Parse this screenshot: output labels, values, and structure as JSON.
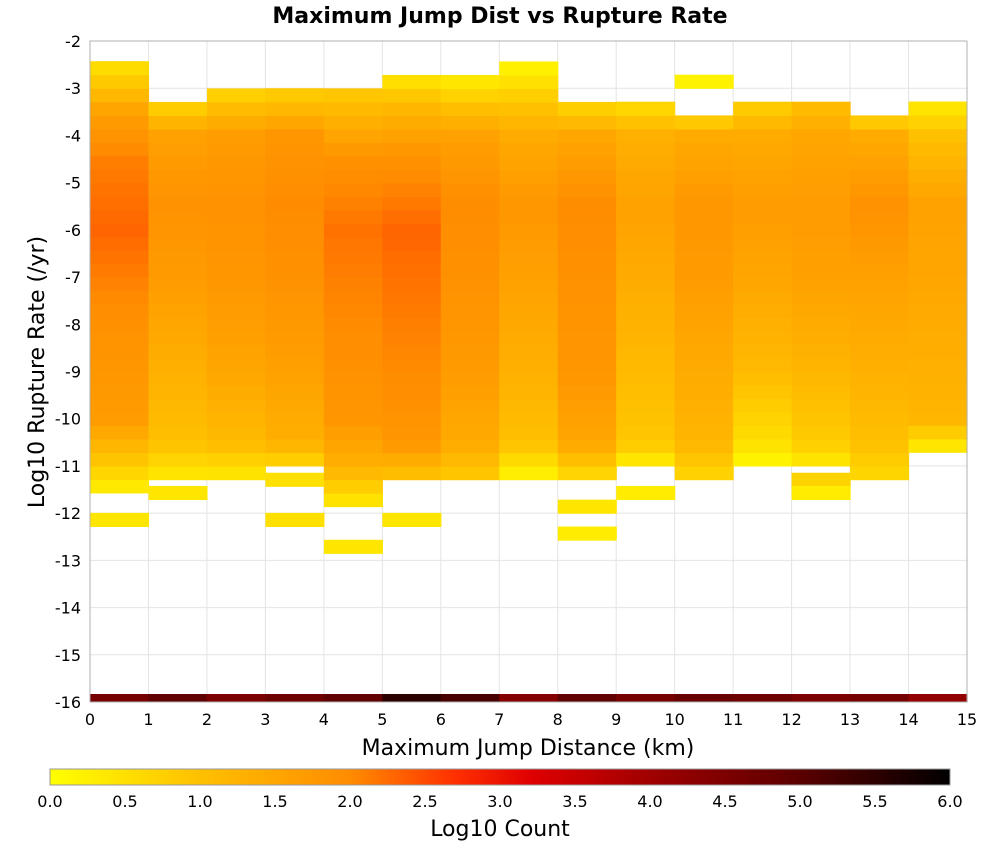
{
  "chart_data": {
    "type": "heatmap",
    "title": "Maximum Jump Dist vs Rupture Rate",
    "xlabel": "Maximum Jump Distance (km)",
    "ylabel": "Log10 Rupture Rate (/yr)",
    "xlim": [
      0,
      15
    ],
    "ylim": [
      -16,
      -2
    ],
    "x_ticks": [
      "0",
      "1",
      "2",
      "3",
      "4",
      "5",
      "6",
      "7",
      "8",
      "9",
      "10",
      "11",
      "12",
      "13",
      "14",
      "15"
    ],
    "y_ticks": [
      "-2",
      "-3",
      "-4",
      "-5",
      "-6",
      "-7",
      "-8",
      "-9",
      "-10",
      "-11",
      "-12",
      "-13",
      "-14",
      "-15",
      "-16"
    ],
    "grid": true,
    "x_bin_width": 1,
    "y_bin_height": 0.2857,
    "y_bin_origin": -16,
    "colorbar": {
      "label": "Log10 Count",
      "range": [
        0,
        6
      ],
      "ticks": [
        "0.0",
        "0.5",
        "1.0",
        "1.5",
        "2.0",
        "2.5",
        "3.0",
        "3.5",
        "4.0",
        "4.5",
        "5.0",
        "5.5",
        "6.0"
      ],
      "stops": [
        {
          "value": 0.0,
          "color": "#ffff00"
        },
        {
          "value": 1.0,
          "color": "#ffc000"
        },
        {
          "value": 2.0,
          "color": "#ff8c00"
        },
        {
          "value": 2.7,
          "color": "#ff3000"
        },
        {
          "value": 3.2,
          "color": "#e00000"
        },
        {
          "value": 4.0,
          "color": "#a00000"
        },
        {
          "value": 5.0,
          "color": "#5a0000"
        },
        {
          "value": 6.0,
          "color": "#000000"
        }
      ]
    },
    "columns": [
      {
        "x": 0.5,
        "y_low": -11.57,
        "y_high": -2.43,
        "profile": [
          [
            -11.57,
            0.2
          ],
          [
            -11.0,
            0.8
          ],
          [
            -10.0,
            1.7
          ],
          [
            -8.0,
            1.9
          ],
          [
            -6.0,
            2.3
          ],
          [
            -4.5,
            2.1
          ],
          [
            -3.5,
            1.6
          ],
          [
            -2.9,
            0.9
          ],
          [
            -2.43,
            0.4
          ]
        ],
        "extra_bins": [
          {
            "y": -12.28,
            "v": 0.4
          }
        ]
      },
      {
        "x": 1.5,
        "y_low": -11.29,
        "y_high": -3.29,
        "profile": [
          [
            -11.29,
            0.3
          ],
          [
            -10.5,
            1.0
          ],
          [
            -9.0,
            1.3
          ],
          [
            -7.0,
            1.7
          ],
          [
            -5.5,
            1.9
          ],
          [
            -4.0,
            1.6
          ],
          [
            -3.29,
            0.6
          ]
        ],
        "extra_bins": [
          {
            "y": -11.71,
            "v": 0.4
          }
        ]
      },
      {
        "x": 2.5,
        "y_low": -11.29,
        "y_high": -3.0,
        "profile": [
          [
            -11.29,
            0.3
          ],
          [
            -10.5,
            1.1
          ],
          [
            -9.0,
            1.5
          ],
          [
            -7.0,
            1.8
          ],
          [
            -5.5,
            1.9
          ],
          [
            -4.0,
            1.7
          ],
          [
            -3.0,
            0.6
          ]
        ],
        "extra_bins": []
      },
      {
        "x": 3.5,
        "y_low": -11.0,
        "y_high": -3.0,
        "profile": [
          [
            -11.0,
            0.6
          ],
          [
            -10.5,
            1.3
          ],
          [
            -9.0,
            1.6
          ],
          [
            -7.0,
            1.9
          ],
          [
            -5.5,
            2.0
          ],
          [
            -4.0,
            1.8
          ],
          [
            -3.0,
            0.7
          ]
        ],
        "extra_bins": [
          {
            "y": -11.43,
            "v": 0.5
          },
          {
            "y": -12.28,
            "v": 0.5
          }
        ]
      },
      {
        "x": 4.5,
        "y_low": -11.86,
        "y_high": -3.0,
        "profile": [
          [
            -11.86,
            0.3
          ],
          [
            -11.0,
            1.3
          ],
          [
            -10.0,
            1.8
          ],
          [
            -8.0,
            2.0
          ],
          [
            -6.0,
            2.2
          ],
          [
            -4.5,
            1.9
          ],
          [
            -3.0,
            0.8
          ]
        ],
        "extra_bins": [
          {
            "y": -12.85,
            "v": 0.4
          }
        ]
      },
      {
        "x": 5.5,
        "y_low": -11.29,
        "y_high": -2.71,
        "profile": [
          [
            -11.29,
            0.9
          ],
          [
            -10.5,
            1.8
          ],
          [
            -9.0,
            2.0
          ],
          [
            -7.0,
            2.2
          ],
          [
            -6.0,
            2.3
          ],
          [
            -4.5,
            1.9
          ],
          [
            -3.3,
            1.1
          ],
          [
            -2.71,
            0.3
          ]
        ],
        "extra_bins": [
          {
            "y": -12.28,
            "v": 0.4
          }
        ]
      },
      {
        "x": 6.5,
        "y_low": -11.29,
        "y_high": -2.71,
        "profile": [
          [
            -11.29,
            0.8
          ],
          [
            -10.5,
            1.4
          ],
          [
            -9.0,
            1.7
          ],
          [
            -7.0,
            1.9
          ],
          [
            -5.5,
            2.0
          ],
          [
            -4.0,
            1.6
          ],
          [
            -3.3,
            0.9
          ],
          [
            -2.71,
            0.2
          ]
        ],
        "extra_bins": []
      },
      {
        "x": 7.5,
        "y_low": -11.29,
        "y_high": -2.43,
        "profile": [
          [
            -11.29,
            0.1
          ],
          [
            -10.5,
            1.0
          ],
          [
            -9.0,
            1.3
          ],
          [
            -7.0,
            1.6
          ],
          [
            -5.5,
            1.8
          ],
          [
            -4.0,
            1.4
          ],
          [
            -3.3,
            0.9
          ],
          [
            -2.43,
            0.1
          ]
        ],
        "extra_bins": []
      },
      {
        "x": 8.5,
        "y_low": -11.29,
        "y_high": -3.29,
        "profile": [
          [
            -11.29,
            0.5
          ],
          [
            -10.5,
            1.5
          ],
          [
            -9.0,
            1.8
          ],
          [
            -7.0,
            1.9
          ],
          [
            -5.5,
            2.0
          ],
          [
            -4.0,
            1.5
          ],
          [
            -3.29,
            0.6
          ]
        ],
        "extra_bins": [
          {
            "y": -12.0,
            "v": 0.4
          },
          {
            "y": -12.57,
            "v": 0.3
          }
        ]
      },
      {
        "x": 9.5,
        "y_low": -11.0,
        "y_high": -3.29,
        "profile": [
          [
            -11.0,
            0.2
          ],
          [
            -10.5,
            0.9
          ],
          [
            -9.0,
            1.1
          ],
          [
            -7.0,
            1.4
          ],
          [
            -5.5,
            1.6
          ],
          [
            -4.0,
            1.3
          ],
          [
            -3.29,
            0.5
          ]
        ],
        "extra_bins": [
          {
            "y": -11.71,
            "v": 0.3
          }
        ]
      },
      {
        "x": 10.5,
        "y_low": -11.29,
        "y_high": -3.57,
        "profile": [
          [
            -11.29,
            0.6
          ],
          [
            -10.5,
            1.2
          ],
          [
            -9.0,
            1.4
          ],
          [
            -7.0,
            1.7
          ],
          [
            -5.5,
            1.8
          ],
          [
            -4.0,
            1.4
          ],
          [
            -3.57,
            0.6
          ]
        ],
        "extra_bins": [
          {
            "y": -3.0,
            "v": 0.2
          }
        ]
      },
      {
        "x": 11.5,
        "y_low": -11.0,
        "y_high": -3.29,
        "profile": [
          [
            -11.0,
            0.1
          ],
          [
            -10.5,
            0.5
          ],
          [
            -9.0,
            1.1
          ],
          [
            -7.0,
            1.5
          ],
          [
            -5.5,
            1.7
          ],
          [
            -4.0,
            1.4
          ],
          [
            -3.29,
            0.7
          ]
        ],
        "extra_bins": []
      },
      {
        "x": 12.5,
        "y_low": -11.0,
        "y_high": -3.29,
        "profile": [
          [
            -11.0,
            0.3
          ],
          [
            -10.5,
            0.8
          ],
          [
            -9.0,
            1.2
          ],
          [
            -7.0,
            1.6
          ],
          [
            -5.5,
            1.7
          ],
          [
            -4.0,
            1.5
          ],
          [
            -3.29,
            1.0
          ]
        ],
        "extra_bins": [
          {
            "y": -11.43,
            "v": 0.7
          },
          {
            "y": -11.71,
            "v": 0.3
          }
        ]
      },
      {
        "x": 13.5,
        "y_low": -11.29,
        "y_high": -3.57,
        "profile": [
          [
            -11.29,
            0.6
          ],
          [
            -10.5,
            1.0
          ],
          [
            -9.0,
            1.3
          ],
          [
            -7.0,
            1.6
          ],
          [
            -5.5,
            1.9
          ],
          [
            -4.0,
            1.4
          ],
          [
            -3.57,
            0.6
          ]
        ],
        "extra_bins": []
      },
      {
        "x": 14.5,
        "y_low": -10.71,
        "y_high": -3.29,
        "profile": [
          [
            -10.71,
            0.2
          ],
          [
            -10.0,
            1.2
          ],
          [
            -9.0,
            1.3
          ],
          [
            -7.0,
            1.5
          ],
          [
            -5.5,
            1.6
          ],
          [
            -4.0,
            1.0
          ],
          [
            -3.29,
            0.3
          ]
        ],
        "extra_bins": []
      }
    ],
    "bottom_row": {
      "y": -16.0,
      "values": [
        4.6,
        4.9,
        4.5,
        4.7,
        4.9,
        5.5,
        5.2,
        4.4,
        4.9,
        4.6,
        4.8,
        4.7,
        4.5,
        4.6,
        4.2
      ]
    }
  }
}
